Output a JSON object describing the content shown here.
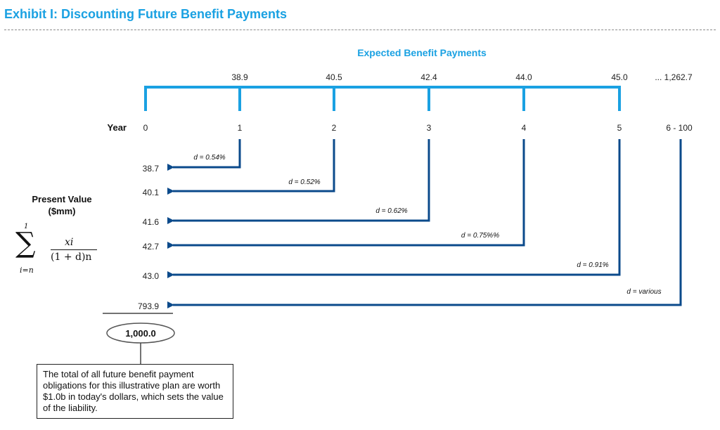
{
  "title": "Exhibit I: Discounting Future Benefit Payments",
  "header": "Expected Benefit Payments",
  "year_label": "Year",
  "pv_label_line1": "Present Value",
  "pv_label_line2": "($mm)",
  "formula": {
    "sum_top": "1",
    "sum_bottom": "i=n",
    "numerator": "xi",
    "denominator": "(1 + d)n"
  },
  "years": [
    "0",
    "1",
    "2",
    "3",
    "4",
    "5",
    "6 - 100"
  ],
  "payments": [
    "38.9",
    "40.5",
    "42.4",
    "44.0",
    "45.0"
  ],
  "payments_tail": "... 1,262.7",
  "rates": [
    "d = 0.54%",
    "d = 0.52%",
    "d = 0.62%",
    "d = 0.75%%",
    "d = 0.91%",
    "d = various"
  ],
  "present_values": [
    "38.7",
    "40.1",
    "41.6",
    "42.7",
    "43.0",
    "793.9"
  ],
  "total": "1,000.0",
  "note": "The total of all future benefit payment obligations for this illustrative plan are worth $1.0b in today's dollars, which sets the value of the liability.",
  "colors": {
    "accent": "#1aa1e2",
    "arrow": "#0b4a8b"
  }
}
